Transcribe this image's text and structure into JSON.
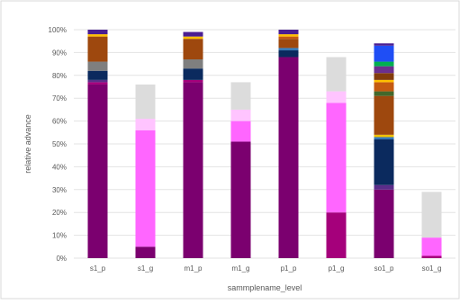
{
  "chart_data": {
    "type": "bar",
    "stacked": true,
    "percent": true,
    "xlabel": "sammplename_level",
    "ylabel": "relative advance",
    "ylim": [
      0,
      100
    ],
    "yticks": [
      "0%",
      "10%",
      "20%",
      "30%",
      "40%",
      "50%",
      "60%",
      "70%",
      "80%",
      "90%",
      "100%"
    ],
    "grid": "horizontal",
    "legend": "none",
    "categories": [
      "s1_p",
      "s1_g",
      "m1_p",
      "m1_g",
      "p1_p",
      "p1_g",
      "so1_p",
      "so1_g"
    ],
    "series": [
      {
        "color": "#7b006f",
        "values": [
          76,
          5,
          77,
          51,
          88,
          0,
          30,
          0
        ]
      },
      {
        "color": "#a5007b",
        "values": [
          1,
          0,
          1,
          0,
          0,
          20,
          0,
          1
        ]
      },
      {
        "color": "#ff66ff",
        "values": [
          0,
          51,
          0,
          9,
          0,
          48,
          0,
          8
        ]
      },
      {
        "color": "#ffc4ff",
        "values": [
          0,
          5,
          0,
          5,
          0,
          5,
          0,
          0
        ]
      },
      {
        "color": "#5b2d8a",
        "values": [
          1,
          0,
          0,
          0,
          0,
          0,
          2,
          0
        ]
      },
      {
        "color": "#0b2a5e",
        "values": [
          4,
          0,
          5,
          0,
          3,
          0,
          20,
          0
        ]
      },
      {
        "color": "#2e75b6",
        "values": [
          0,
          0,
          0,
          0,
          1,
          0,
          1,
          0
        ]
      },
      {
        "color": "#f2c300",
        "values": [
          0,
          0,
          0,
          0,
          0,
          0,
          1,
          0
        ]
      },
      {
        "color": "#7f7f7f",
        "values": [
          4,
          0,
          4,
          0,
          0,
          0,
          0,
          0
        ]
      },
      {
        "color": "#9e480e",
        "values": [
          11,
          0,
          9,
          0,
          4,
          0,
          17,
          0
        ]
      },
      {
        "color": "#43682b",
        "values": [
          0,
          0,
          0,
          0,
          0,
          0,
          2,
          0
        ]
      },
      {
        "color": "#c55a11",
        "values": [
          0,
          0,
          0,
          0,
          1,
          0,
          4,
          0
        ]
      },
      {
        "color": "#ffc000",
        "values": [
          1,
          0,
          1,
          0,
          1,
          0,
          1,
          0
        ]
      },
      {
        "color": "#833c0b",
        "values": [
          0,
          0,
          0,
          0,
          0,
          0,
          3,
          0
        ]
      },
      {
        "color": "#6b2f8f",
        "values": [
          0,
          0,
          0,
          0,
          0,
          0,
          3,
          0
        ]
      },
      {
        "color": "#00b050",
        "values": [
          0,
          0,
          0,
          0,
          0,
          0,
          2,
          0
        ]
      },
      {
        "color": "#1f4ef5",
        "values": [
          0,
          0,
          0,
          0,
          0,
          0,
          7,
          0
        ]
      },
      {
        "color": "#4a1e92",
        "values": [
          2,
          0,
          2,
          0,
          2,
          0,
          1,
          0
        ]
      },
      {
        "color": "#dcdcdc",
        "values": [
          0,
          15,
          0,
          12,
          0,
          15,
          0,
          20
        ]
      }
    ]
  }
}
